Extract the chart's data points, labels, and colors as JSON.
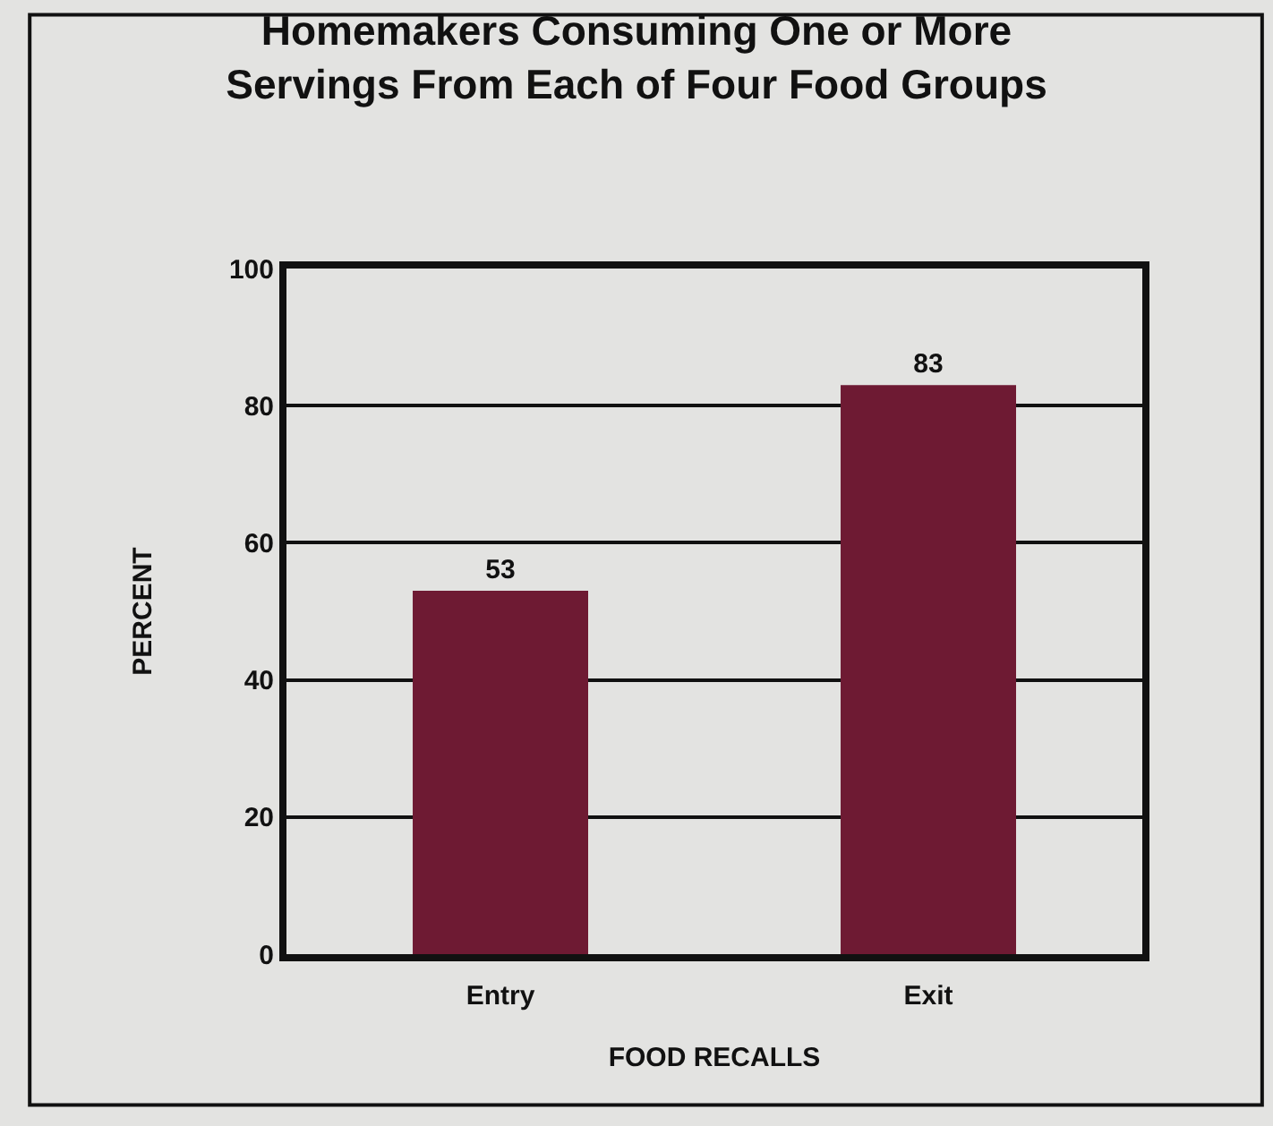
{
  "chart_data": {
    "type": "bar",
    "title": "Homemakers Consuming One or More\nServings From Each of Four Food Groups",
    "xlabel": "FOOD RECALLS",
    "ylabel": "PERCENT",
    "categories": [
      "Entry",
      "Exit"
    ],
    "values": [
      53,
      83
    ],
    "color": "#6e1a33",
    "ylim": [
      0,
      100
    ],
    "yticks": [
      0,
      20,
      40,
      60,
      80,
      100
    ],
    "grid": "y",
    "data_labels": true
  }
}
